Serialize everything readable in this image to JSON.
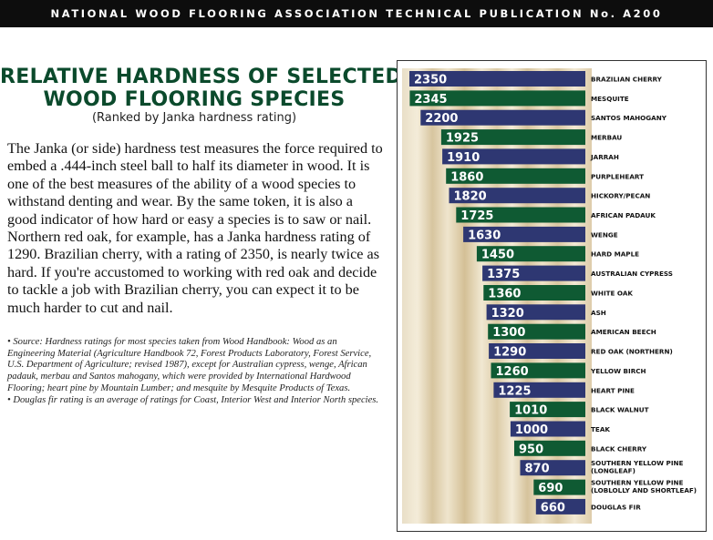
{
  "header": {
    "banner": "NATIONAL WOOD FLOORING ASSOCIATION TECHNICAL PUBLICATION No. A200"
  },
  "article": {
    "title_line1": "RELATIVE HARDNESS OF SELECTED",
    "title_line2": "WOOD FLOORING SPECIES",
    "subtitle": "(Ranked by Janka hardness rating)",
    "body": "The Janka (or side) hardness test measures the force required to embed a .444-inch steel ball to half its diameter in wood. It is one of the best measures of the ability of a wood species to withstand denting and wear. By the same token, it is also a good indicator of how hard or easy a species is to saw or nail. Northern red oak, for example, has a Janka hardness rating of 1290. Brazilian cherry, with a rating of 2350, is nearly twice as hard. If you're accustomed to working with red oak and decide to tackle a job with Brazilian cherry, you can expect it to be much harder to cut and nail.",
    "notes": [
      "• Source: Hardness ratings for most species taken from Wood Handbook: Wood as an Engineering Material (Agriculture Handbook 72, Forest Products Laboratory, Forest Service, U.S. Department of Agriculture; revised 1987), except for Australian cypress, wenge, African padauk, merbau and Santos mahogany, which were provided by International Hardwood Flooring; heart pine by Mountain Lumber; and mesquite by Mesquite Products of Texas.",
      "• Douglas fir rating is an average of ratings for Coast, Interior West and Interior North species."
    ]
  },
  "colors": {
    "navy": "#2e3772",
    "green": "#0f5a33",
    "highlight": "#b3262e",
    "title_green": "#0b4a2c"
  },
  "chart_data": {
    "type": "bar",
    "orientation": "horizontal",
    "value_axis": "Janka hardness rating",
    "grid": false,
    "categories": [
      "BRAZILIAN CHERRY",
      "MESQUITE",
      "SANTOS MAHOGANY",
      "MERBAU",
      "JARRAH",
      "PURPLEHEART",
      "HICKORY/PECAN",
      "AFRICAN PADAUK",
      "WENGE",
      "HARD MAPLE",
      "AUSTRALIAN CYPRESS",
      "WHITE OAK",
      "ASH",
      "AMERICAN BEECH",
      "RED OAK (NORTHERN)",
      "YELLOW BIRCH",
      "HEART PINE",
      "BLACK WALNUT",
      "TEAK",
      "BLACK CHERRY",
      [
        "SOUTHERN YELLOW PINE",
        "(LONGLEAF)"
      ],
      [
        "SOUTHERN YELLOW PINE",
        "(LOBLOLLY AND SHORTLEAF)"
      ],
      "DOUGLAS FIR"
    ],
    "values": [
      2350,
      2345,
      2200,
      1925,
      1910,
      1860,
      1820,
      1725,
      1630,
      1450,
      1375,
      1360,
      1320,
      1300,
      1290,
      1260,
      1225,
      1010,
      1000,
      950,
      870,
      690,
      660
    ],
    "value_labels": [
      "2350",
      "2345",
      "2200",
      "1925",
      "1910",
      "1860",
      "1820",
      "1725",
      "1630",
      "1450",
      "1375",
      "1360",
      "1320",
      "1300",
      "1290",
      "1260",
      "1225",
      "1010",
      "1000",
      "950",
      "870",
      "690",
      "660"
    ],
    "bar_colors": [
      "navy",
      "green",
      "navy",
      "green",
      "navy",
      "green",
      "navy",
      "green",
      "navy",
      "green",
      "navy",
      "green",
      "navy",
      "green",
      "navy",
      "green",
      "navy",
      "green",
      "navy",
      "green",
      "navy",
      "green",
      "navy"
    ],
    "highlight": "RED OAK (NORTHERN)"
  }
}
